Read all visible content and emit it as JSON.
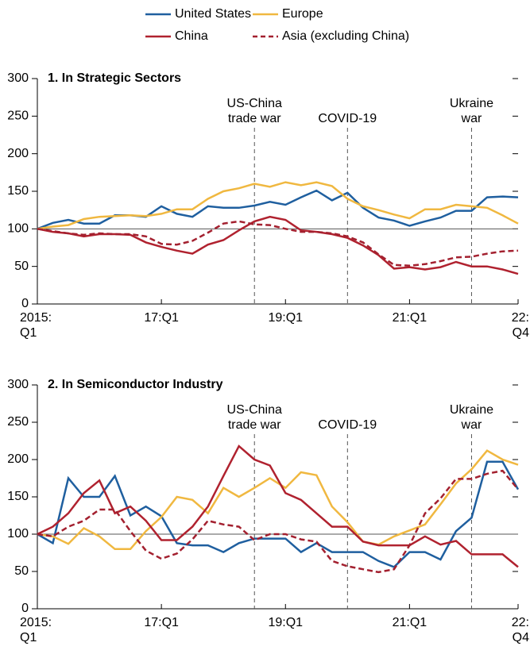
{
  "legend": {
    "position": "top"
  },
  "chart_data": [
    {
      "type": "line",
      "title": "1. In Strategic Sectors",
      "categories": [
        "2015:\nQ1",
        null,
        null,
        null,
        null,
        null,
        null,
        null,
        "17:Q1",
        null,
        null,
        null,
        null,
        null,
        null,
        null,
        "19:Q1",
        null,
        null,
        null,
        null,
        null,
        null,
        null,
        "21:Q1",
        null,
        null,
        null,
        null,
        null,
        null,
        "22:\nQ4"
      ],
      "ylim": [
        0,
        300
      ],
      "yticks": [
        0,
        50,
        100,
        150,
        200,
        250,
        300
      ],
      "hline": 100,
      "annotations": [
        {
          "label": "US-China\ntrade war",
          "x": 14
        },
        {
          "label": "COVID-19",
          "x": 20
        },
        {
          "label": "Ukraine\nwar",
          "x": 28
        }
      ],
      "series": [
        {
          "name": "United States",
          "color": "#1f5f9f",
          "dashed": false,
          "values": [
            100,
            108,
            112,
            107,
            107,
            118,
            118,
            116,
            130,
            120,
            116,
            130,
            128,
            128,
            131,
            136,
            132,
            142,
            151,
            138,
            148,
            128,
            115,
            111,
            104,
            110,
            115,
            124,
            124,
            142,
            143,
            142
          ]
        },
        {
          "name": "Europe",
          "color": "#f0b840",
          "dashed": false,
          "values": [
            100,
            103,
            105,
            113,
            116,
            117,
            118,
            117,
            120,
            126,
            126,
            140,
            150,
            154,
            160,
            156,
            162,
            158,
            162,
            157,
            140,
            130,
            125,
            119,
            114,
            126,
            126,
            132,
            130,
            128,
            118,
            107
          ]
        },
        {
          "name": "China",
          "color": "#b0222f",
          "dashed": false,
          "values": [
            100,
            96,
            94,
            90,
            93,
            93,
            92,
            82,
            76,
            71,
            67,
            79,
            85,
            98,
            110,
            116,
            112,
            98,
            96,
            93,
            88,
            78,
            65,
            47,
            49,
            46,
            49,
            56,
            50,
            50,
            46,
            40
          ]
        },
        {
          "name": "Asia (excluding China)",
          "color": "#a3202f",
          "dashed": true,
          "values": [
            100,
            97,
            94,
            92,
            94,
            93,
            93,
            90,
            80,
            79,
            84,
            95,
            107,
            110,
            106,
            105,
            100,
            96,
            96,
            94,
            90,
            82,
            66,
            52,
            51,
            53,
            57,
            62,
            63,
            67,
            70,
            71
          ]
        }
      ]
    },
    {
      "type": "line",
      "title": "2. In Semiconductor Industry",
      "categories": [
        "2015:\nQ1",
        null,
        null,
        null,
        null,
        null,
        null,
        null,
        "17:Q1",
        null,
        null,
        null,
        null,
        null,
        null,
        null,
        "19:Q1",
        null,
        null,
        null,
        null,
        null,
        null,
        null,
        "21:Q1",
        null,
        null,
        null,
        null,
        null,
        null,
        "22:\nQ4"
      ],
      "ylim": [
        0,
        300
      ],
      "yticks": [
        0,
        50,
        100,
        150,
        200,
        250,
        300
      ],
      "hline": 100,
      "annotations": [
        {
          "label": "US-China\ntrade war",
          "x": 14
        },
        {
          "label": "COVID-19",
          "x": 20
        },
        {
          "label": "Ukraine\nwar",
          "x": 28
        }
      ],
      "series": [
        {
          "name": "United States",
          "color": "#1f5f9f",
          "dashed": false,
          "values": [
            100,
            88,
            175,
            150,
            150,
            178,
            125,
            137,
            124,
            88,
            85,
            85,
            76,
            88,
            94,
            94,
            94,
            76,
            88,
            76,
            76,
            76,
            64,
            56,
            76,
            76,
            66,
            104,
            122,
            197,
            197,
            160
          ]
        },
        {
          "name": "Europe",
          "color": "#f0b840",
          "dashed": false,
          "values": [
            100,
            97,
            87,
            108,
            97,
            80,
            80,
            104,
            123,
            150,
            146,
            128,
            162,
            150,
            162,
            175,
            162,
            183,
            179,
            137,
            116,
            90,
            86,
            97,
            105,
            113,
            140,
            168,
            187,
            212,
            200,
            193
          ]
        },
        {
          "name": "China",
          "color": "#b0222f",
          "dashed": false,
          "values": [
            100,
            110,
            128,
            155,
            172,
            128,
            137,
            118,
            92,
            92,
            110,
            137,
            178,
            218,
            200,
            192,
            155,
            146,
            128,
            110,
            110,
            90,
            85,
            85,
            85,
            97,
            86,
            91,
            73,
            73,
            73,
            56
          ]
        },
        {
          "name": "Asia (excluding China)",
          "color": "#a3202f",
          "dashed": true,
          "values": [
            100,
            97,
            110,
            118,
            133,
            133,
            104,
            78,
            67,
            74,
            93,
            118,
            113,
            110,
            92,
            100,
            100,
            93,
            90,
            64,
            57,
            53,
            49,
            53,
            85,
            128,
            148,
            174,
            174,
            181,
            185,
            160
          ]
        }
      ]
    }
  ]
}
